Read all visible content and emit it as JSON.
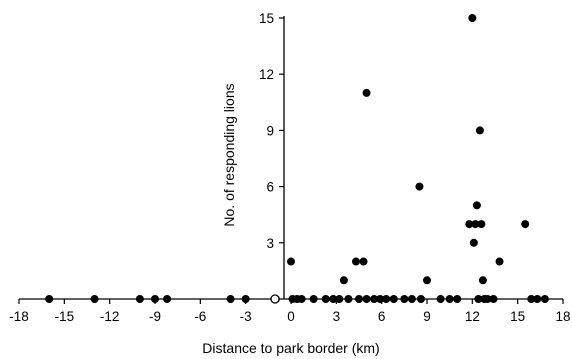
{
  "chart_data": {
    "type": "scatter",
    "xlabel": "Distance to park border (km)",
    "ylabel": "No. of responding lions",
    "xlim": [
      -18,
      18
    ],
    "ylim": [
      0,
      15
    ],
    "x_ticks": [
      -18,
      -15,
      -12,
      -9,
      -6,
      -3,
      0,
      3,
      6,
      9,
      12,
      15,
      18
    ],
    "y_ticks": [
      3,
      6,
      9,
      12,
      15
    ],
    "grid": false,
    "legend": "none",
    "point_color": "#000000",
    "points": [
      {
        "x": -16.0,
        "y": 0
      },
      {
        "x": -13.0,
        "y": 0
      },
      {
        "x": -10.0,
        "y": 0
      },
      {
        "x": -9.0,
        "y": 0
      },
      {
        "x": -8.2,
        "y": 0
      },
      {
        "x": -4.0,
        "y": 0
      },
      {
        "x": -3.0,
        "y": 0
      },
      {
        "x": -1.0,
        "y": 0
      },
      {
        "x": 0.0,
        "y": 2
      },
      {
        "x": 0.1,
        "y": 0
      },
      {
        "x": 0.4,
        "y": 0
      },
      {
        "x": 0.7,
        "y": 0
      },
      {
        "x": 1.5,
        "y": 0
      },
      {
        "x": 2.3,
        "y": 0
      },
      {
        "x": 2.8,
        "y": 0
      },
      {
        "x": 3.2,
        "y": 0
      },
      {
        "x": 3.5,
        "y": 1
      },
      {
        "x": 3.8,
        "y": 0
      },
      {
        "x": 4.3,
        "y": 2
      },
      {
        "x": 4.5,
        "y": 0
      },
      {
        "x": 4.8,
        "y": 2
      },
      {
        "x": 5.0,
        "y": 11
      },
      {
        "x": 5.0,
        "y": 0
      },
      {
        "x": 5.5,
        "y": 0
      },
      {
        "x": 5.9,
        "y": 0
      },
      {
        "x": 6.3,
        "y": 0
      },
      {
        "x": 6.8,
        "y": 0
      },
      {
        "x": 7.5,
        "y": 0
      },
      {
        "x": 8.0,
        "y": 0
      },
      {
        "x": 8.5,
        "y": 6
      },
      {
        "x": 8.6,
        "y": 0
      },
      {
        "x": 9.0,
        "y": 1
      },
      {
        "x": 9.9,
        "y": 0
      },
      {
        "x": 10.5,
        "y": 0
      },
      {
        "x": 11.0,
        "y": 0
      },
      {
        "x": 11.8,
        "y": 4
      },
      {
        "x": 12.0,
        "y": 15
      },
      {
        "x": 12.1,
        "y": 3
      },
      {
        "x": 12.2,
        "y": 4
      },
      {
        "x": 12.3,
        "y": 5
      },
      {
        "x": 12.4,
        "y": 0
      },
      {
        "x": 12.5,
        "y": 9
      },
      {
        "x": 12.6,
        "y": 4
      },
      {
        "x": 12.7,
        "y": 1
      },
      {
        "x": 12.8,
        "y": 0
      },
      {
        "x": 13.0,
        "y": 0
      },
      {
        "x": 13.4,
        "y": 0
      },
      {
        "x": 13.8,
        "y": 2
      },
      {
        "x": 15.5,
        "y": 4
      },
      {
        "x": 15.9,
        "y": 0
      },
      {
        "x": 16.3,
        "y": 0
      },
      {
        "x": 16.8,
        "y": 0
      }
    ]
  }
}
